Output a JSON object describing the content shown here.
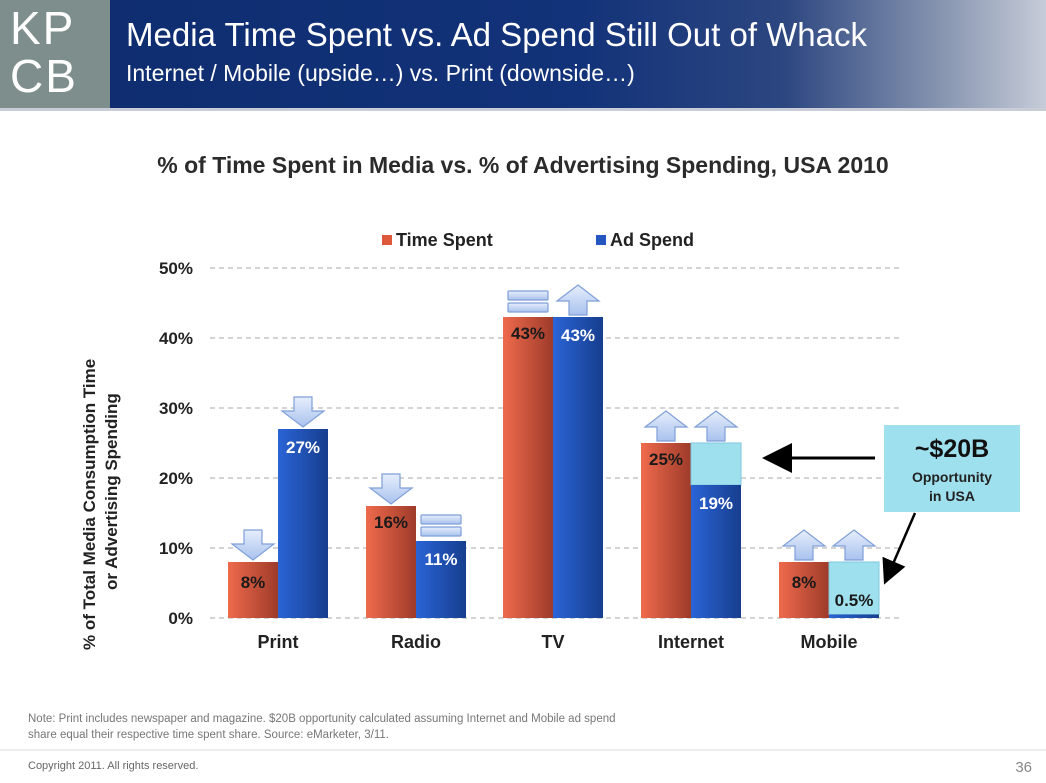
{
  "header": {
    "logo_line1": "KP",
    "logo_line2": "CB",
    "title": "Media Time Spent vs. Ad Spend Still Out of Whack",
    "subtitle": "Internet / Mobile (upside…) vs. Print (downside…)"
  },
  "colors": {
    "header_bg": "#123279",
    "logo_bg": "#7e8e8c",
    "time_spent": "#e0583c",
    "ad_spend": "#2356c0",
    "opportunity": "#9fe0ee",
    "arrow_fill": "#c9d8f5"
  },
  "chart_data": {
    "type": "bar",
    "title": "% of Time Spent in Media vs. % of Advertising Spending, USA 2010",
    "xlabel": "",
    "ylabel": "% of Total Media Consumption Time or Advertising Spending",
    "ylabel_lines": [
      "% of Total Media Consumption Time",
      "or Advertising Spending"
    ],
    "ylim": [
      0,
      50
    ],
    "yticks": [
      0,
      10,
      20,
      30,
      40,
      50
    ],
    "ytick_labels": [
      "0%",
      "10%",
      "20%",
      "30%",
      "40%",
      "50%"
    ],
    "grid": true,
    "legend_position": "top-center",
    "categories": [
      "Print",
      "Radio",
      "TV",
      "Internet",
      "Mobile"
    ],
    "series": [
      {
        "name": "Time Spent",
        "values": [
          8,
          16,
          43,
          25,
          8
        ],
        "labels": [
          "8%",
          "16%",
          "43%",
          "25%",
          "8%"
        ],
        "trend": [
          "down",
          "down",
          "equal",
          "up",
          "up"
        ]
      },
      {
        "name": "Ad Spend",
        "values": [
          27,
          11,
          43,
          19,
          0.5
        ],
        "labels": [
          "27%",
          "11%",
          "43%",
          "19%",
          "0.5%"
        ],
        "trend": [
          "down",
          "equal",
          "up",
          "up",
          "up"
        ]
      }
    ],
    "opportunity_gap": {
      "categories": [
        "Internet",
        "Mobile"
      ],
      "target_values": [
        25,
        8
      ]
    },
    "annotation": {
      "value": "~$20B",
      "line1": "Opportunity",
      "line2": "in USA"
    }
  },
  "footer": {
    "note_line1": "Note: Print includes newspaper and magazine. $20B opportunity calculated assuming Internet and Mobile ad spend",
    "note_line2": "share equal their respective time spent share. Source: eMarketer, 3/11.",
    "copyright": "Copyright 2011. All rights reserved.",
    "page_number": "36"
  }
}
